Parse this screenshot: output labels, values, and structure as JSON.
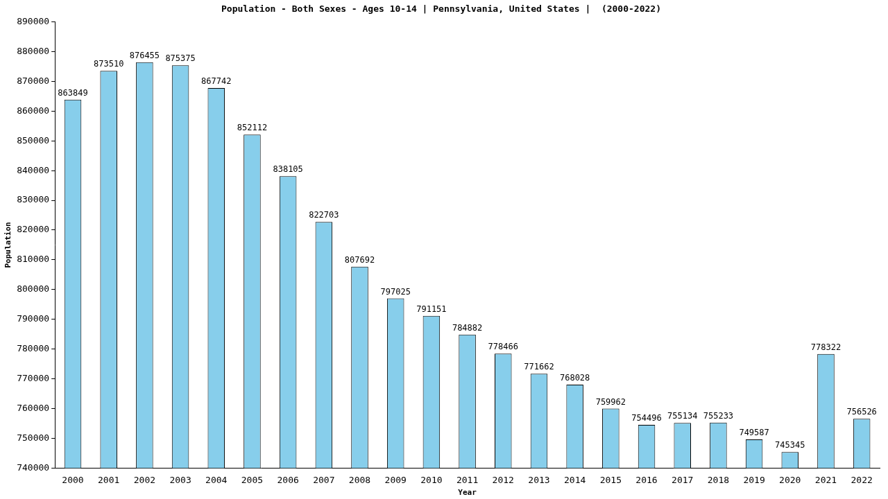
{
  "chart_data": {
    "type": "bar",
    "title": "Population - Both Sexes - Ages 10-14 | Pennsylvania, United States |  (2000-2022)",
    "x_label": "Year",
    "y_label": "Population",
    "categories": [
      "2000",
      "2001",
      "2002",
      "2003",
      "2004",
      "2005",
      "2006",
      "2007",
      "2008",
      "2009",
      "2010",
      "2011",
      "2012",
      "2013",
      "2014",
      "2015",
      "2016",
      "2017",
      "2018",
      "2019",
      "2020",
      "2021",
      "2022"
    ],
    "values": [
      863849,
      873510,
      876455,
      875375,
      867742,
      852112,
      838105,
      822703,
      807692,
      797025,
      791151,
      784882,
      778466,
      771662,
      768028,
      759962,
      754496,
      755134,
      755233,
      749587,
      745345,
      778322,
      756526
    ],
    "color": "#87ceeb",
    "ylim": [
      740000,
      890000
    ],
    "yticks": [
      740000,
      750000,
      760000,
      770000,
      780000,
      790000,
      800000,
      810000,
      820000,
      830000,
      840000,
      850000,
      860000,
      870000,
      880000,
      890000
    ],
    "grid": false,
    "data_labels": true
  }
}
